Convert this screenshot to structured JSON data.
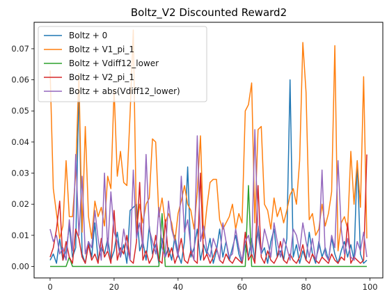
{
  "chart_data": {
    "type": "line",
    "title": "Boltz_V2 Discounted Reward2",
    "xlabel": "",
    "ylabel": "",
    "xlim": [
      -5,
      104
    ],
    "ylim": [
      -0.0037,
      0.0785
    ],
    "xticks": [
      0,
      20,
      40,
      60,
      80,
      100
    ],
    "xtick_labels": [
      "0",
      "20",
      "40",
      "60",
      "80",
      "100"
    ],
    "yticks": [
      0.0,
      0.01,
      0.02,
      0.03,
      0.04,
      0.05,
      0.06,
      0.07
    ],
    "ytick_labels": [
      "0.00",
      "0.01",
      "0.02",
      "0.03",
      "0.04",
      "0.05",
      "0.06",
      "0.07"
    ],
    "grid": false,
    "legend_position": "top-left",
    "series": [
      {
        "name": "Boltz + 0",
        "color": "#1f77b4",
        "values": [
          0.002,
          0.004,
          0.001,
          0.009,
          0.002,
          0.005,
          0.013,
          0.003,
          0.006,
          0.058,
          0.004,
          0.001,
          0.008,
          0.003,
          0.014,
          0.002,
          0.006,
          0.004,
          0.009,
          0.002,
          0.005,
          0.011,
          0.003,
          0.007,
          0.001,
          0.018,
          0.019,
          0.02,
          0.005,
          0.008,
          0.002,
          0.013,
          0.004,
          0.007,
          0.001,
          0.009,
          0.003,
          0.006,
          0.002,
          0.01,
          0.004,
          0.001,
          0.008,
          0.032,
          0.003,
          0.006,
          0.012,
          0.002,
          0.007,
          0.004,
          0.009,
          0.001,
          0.005,
          0.012,
          0.003,
          0.008,
          0.002,
          0.006,
          0.01,
          0.004,
          0.001,
          0.007,
          0.003,
          0.009,
          0.002,
          0.013,
          0.004,
          0.006,
          0.001,
          0.008,
          0.012,
          0.003,
          0.005,
          0.002,
          0.009,
          0.06,
          0.003,
          0.007,
          0.001,
          0.005,
          0.002,
          0.011,
          0.004,
          0.001,
          0.008,
          0.003,
          0.006,
          0.002,
          0.009,
          0.004,
          0.001,
          0.005,
          0.008,
          0.003,
          0.007,
          0.002,
          0.034,
          0.004,
          0.001,
          0.002
        ]
      },
      {
        "name": "Boltz + V1_pi_1",
        "color": "#ff7f0e",
        "values": [
          0.063,
          0.025,
          0.017,
          0.009,
          0.013,
          0.034,
          0.016,
          0.016,
          0.03,
          0.062,
          0.011,
          0.045,
          0.016,
          0.009,
          0.021,
          0.016,
          0.019,
          0.013,
          0.029,
          0.025,
          0.057,
          0.029,
          0.037,
          0.027,
          0.026,
          0.049,
          0.076,
          0.012,
          0.02,
          0.014,
          0.02,
          0.022,
          0.041,
          0.04,
          0.016,
          0.022,
          0.014,
          0.017,
          0.014,
          0.008,
          0.017,
          0.021,
          0.026,
          0.02,
          0.018,
          0.012,
          0.024,
          0.042,
          0.009,
          0.019,
          0.027,
          0.028,
          0.028,
          0.015,
          0.012,
          0.014,
          0.016,
          0.02,
          0.012,
          0.017,
          0.014,
          0.05,
          0.052,
          0.059,
          0.014,
          0.044,
          0.045,
          0.02,
          0.018,
          0.012,
          0.022,
          0.016,
          0.019,
          0.014,
          0.018,
          0.023,
          0.025,
          0.02,
          0.034,
          0.072,
          0.056,
          0.015,
          0.017,
          0.01,
          0.012,
          0.02,
          0.013,
          0.017,
          0.024,
          0.071,
          0.005,
          0.014,
          0.016,
          0.012,
          0.037,
          0.02,
          0.034,
          0.019,
          0.061,
          0.009
        ]
      },
      {
        "name": "Boltz + Vdiff12_lower",
        "color": "#2ca02c",
        "values": [
          0.0,
          0.0,
          0.0,
          0.0,
          0.0,
          0.0,
          0.003,
          0.0,
          0.0,
          0.0,
          0.0,
          0.0,
          0.0,
          0.0,
          0.0,
          0.0,
          0.0,
          0.0,
          0.0,
          0.0,
          0.0,
          0.0,
          0.0,
          0.0,
          0.0,
          0.0,
          0.0,
          0.0,
          0.0,
          0.0,
          0.0,
          0.0,
          0.0,
          0.0,
          0.0,
          0.017,
          0.0,
          0.0,
          0.0,
          0.0,
          0.0,
          0.0,
          0.0,
          0.0,
          0.0,
          0.0,
          0.0,
          0.0,
          0.0,
          0.0,
          0.0,
          0.0,
          0.0,
          0.0,
          0.0,
          0.0,
          0.0,
          0.0,
          0.0,
          0.0,
          0.0,
          0.0,
          0.026,
          0.0,
          0.0,
          0.0,
          0.0,
          0.0,
          0.0,
          0.0,
          0.0,
          0.0,
          0.0,
          0.0,
          0.0,
          0.0,
          0.0,
          0.0,
          0.0,
          0.0,
          0.0,
          0.0,
          0.0,
          0.0,
          0.0,
          0.0,
          0.0,
          0.0,
          0.0,
          0.0,
          0.0,
          0.0,
          0.0,
          0.0,
          0.0,
          0.0,
          0.0,
          0.0,
          0.0,
          0.0
        ]
      },
      {
        "name": "Boltz + V2_pi_1",
        "color": "#d62728",
        "values": [
          0.003,
          0.006,
          0.012,
          0.021,
          0.002,
          0.008,
          0.003,
          0.001,
          0.012,
          0.009,
          0.003,
          0.001,
          0.007,
          0.002,
          0.004,
          0.001,
          0.009,
          0.003,
          0.005,
          0.001,
          0.018,
          0.002,
          0.006,
          0.004,
          0.01,
          0.002,
          0.001,
          0.008,
          0.027,
          0.002,
          0.005,
          0.001,
          0.003,
          0.01,
          0.002,
          0.001,
          0.015,
          0.003,
          0.006,
          0.001,
          0.004,
          0.009,
          0.002,
          0.001,
          0.005,
          0.002,
          0.001,
          0.03,
          0.002,
          0.004,
          0.001,
          0.003,
          0.006,
          0.002,
          0.001,
          0.004,
          0.002,
          0.001,
          0.003,
          0.002,
          0.001,
          0.011,
          0.002,
          0.004,
          0.001,
          0.026,
          0.003,
          0.001,
          0.005,
          0.002,
          0.001,
          0.003,
          0.008,
          0.002,
          0.001,
          0.004,
          0.002,
          0.001,
          0.003,
          0.007,
          0.002,
          0.001,
          0.004,
          0.002,
          0.001,
          0.003,
          0.002,
          0.001,
          0.004,
          0.002,
          0.001,
          0.003,
          0.002,
          0.014,
          0.001,
          0.003,
          0.002,
          0.001,
          0.002,
          0.036
        ]
      },
      {
        "name": "Boltz + abs(Vdiff12_lower)",
        "color": "#9467bd",
        "values": [
          0.012,
          0.008,
          0.01,
          0.004,
          0.006,
          0.002,
          0.015,
          0.005,
          0.036,
          0.01,
          0.029,
          0.004,
          0.008,
          0.006,
          0.018,
          0.009,
          0.002,
          0.03,
          0.005,
          0.024,
          0.011,
          0.008,
          0.003,
          0.012,
          0.006,
          0.002,
          0.031,
          0.009,
          0.014,
          0.006,
          0.036,
          0.012,
          0.008,
          0.004,
          0.019,
          0.006,
          0.003,
          0.021,
          0.012,
          0.008,
          0.003,
          0.029,
          0.011,
          0.015,
          0.006,
          0.002,
          0.042,
          0.008,
          0.013,
          0.005,
          0.003,
          0.009,
          0.006,
          0.002,
          0.014,
          0.008,
          0.003,
          0.004,
          0.012,
          0.006,
          0.002,
          0.008,
          0.01,
          0.004,
          0.044,
          0.01,
          0.004,
          0.012,
          0.008,
          0.003,
          0.014,
          0.008,
          0.003,
          0.009,
          0.006,
          0.002,
          0.012,
          0.01,
          0.005,
          0.014,
          0.008,
          0.003,
          0.009,
          0.002,
          0.006,
          0.031,
          0.004,
          0.002,
          0.01,
          0.006,
          0.034,
          0.012,
          0.004,
          0.009,
          0.003,
          0.002,
          0.008,
          0.005,
          0.011,
          0.003
        ]
      }
    ]
  }
}
